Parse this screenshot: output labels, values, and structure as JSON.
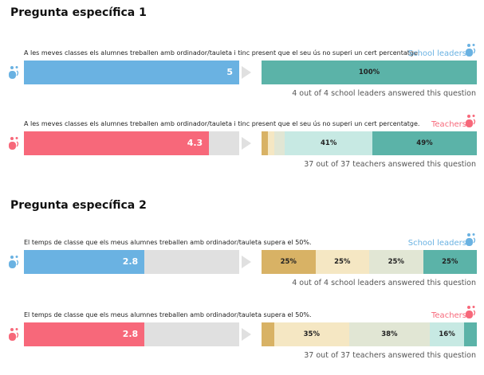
{
  "colors": {
    "leaders": "#6ab2e2",
    "teachers": "#f7687a",
    "scale": [
      "#d8b265",
      "#f5e7c3",
      "#e1e6d4",
      "#c7e9e3",
      "#5bb3a8"
    ]
  },
  "chart_data": [
    {
      "type": "bar",
      "title": "Pregunta específica 1",
      "question": "A les meves classes els alumnes treballen amb ordinador/tauleta i tinc present que el seu ús no superi un cert percentatge.",
      "group": "School leaders",
      "mean": 5,
      "max": 5,
      "distribution": [
        0,
        0,
        0,
        0,
        100
      ],
      "distribution_labels": [
        "",
        "",
        "",
        "",
        "100%"
      ],
      "footer": "4 out of 4 school leaders answered this question"
    },
    {
      "type": "bar",
      "question": "A les meves classes els alumnes treballen amb ordinador/tauleta i tinc present que el seu ús no superi un cert percentatge.",
      "group": "Teachers",
      "mean": 4.3,
      "max": 5,
      "distribution": [
        3,
        3,
        5,
        41,
        49
      ],
      "distribution_labels": [
        "",
        "",
        "",
        "41%",
        "49%"
      ],
      "footer": "37 out of 37 teachers answered this question"
    },
    {
      "type": "bar",
      "title": "Pregunta específica 2",
      "question": "El temps de classe que els meus alumnes treballen amb ordinador/tauleta supera el 50%.",
      "group": "School leaders",
      "mean": 2.8,
      "max": 5,
      "distribution": [
        25,
        25,
        25,
        0,
        25
      ],
      "distribution_labels": [
        "25%",
        "25%",
        "25%",
        "",
        "25%"
      ],
      "footer": "4 out of 4 school leaders answered this question"
    },
    {
      "type": "bar",
      "question": "El temps de classe que els meus alumnes treballen amb ordinador/tauleta supera el 50%.",
      "group": "Teachers",
      "mean": 2.8,
      "max": 5,
      "distribution": [
        6,
        35,
        38,
        16,
        6
      ],
      "distribution_labels": [
        "",
        "35%",
        "38%",
        "16%",
        ""
      ],
      "footer": "37 out of 37 teachers answered this question"
    }
  ],
  "mean_labels": [
    "5",
    "4.3",
    "2.8",
    "2.8"
  ]
}
